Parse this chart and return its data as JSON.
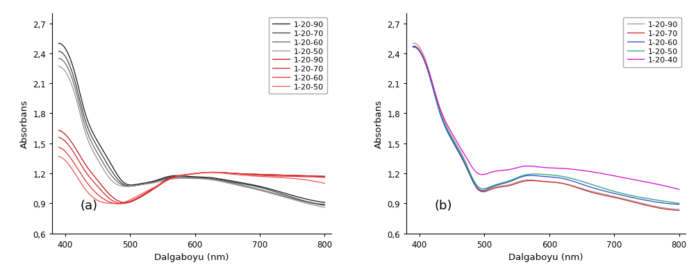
{
  "xlim": [
    380,
    810
  ],
  "ylim": [
    0.6,
    2.8
  ],
  "xlabel": "Dalgaboyu (nm)",
  "ylabel": "Absorbans",
  "yticks": [
    0.6,
    0.9,
    1.2,
    1.5,
    1.8,
    2.1,
    2.4,
    2.7
  ],
  "xticks": [
    400,
    500,
    600,
    700,
    800
  ],
  "panel_a": {
    "label": "(a)",
    "series": [
      {
        "label": "1-20-90",
        "color": "#111111",
        "lw": 0.9,
        "knots_x": [
          390,
          400,
          415,
          430,
          450,
          470,
          490,
          510,
          540,
          560,
          590,
          620,
          660,
          700,
          750,
          800
        ],
        "knots_y": [
          2.5,
          2.45,
          2.2,
          1.82,
          1.52,
          1.3,
          1.11,
          1.09,
          1.13,
          1.17,
          1.17,
          1.16,
          1.12,
          1.07,
          0.98,
          0.91
        ]
      },
      {
        "label": "1-20-70",
        "color": "#3a3a3a",
        "lw": 0.9,
        "knots_x": [
          390,
          400,
          415,
          430,
          450,
          470,
          490,
          510,
          540,
          560,
          590,
          620,
          660,
          700,
          750,
          800
        ],
        "knots_y": [
          2.42,
          2.37,
          2.12,
          1.75,
          1.46,
          1.24,
          1.09,
          1.08,
          1.12,
          1.16,
          1.16,
          1.15,
          1.11,
          1.06,
          0.96,
          0.89
        ]
      },
      {
        "label": "1-20-60",
        "color": "#636363",
        "lw": 0.9,
        "knots_x": [
          390,
          400,
          415,
          430,
          450,
          470,
          490,
          510,
          540,
          560,
          590,
          620,
          660,
          700,
          750,
          800
        ],
        "knots_y": [
          2.35,
          2.3,
          2.06,
          1.69,
          1.4,
          1.19,
          1.08,
          1.08,
          1.12,
          1.15,
          1.16,
          1.15,
          1.1,
          1.04,
          0.95,
          0.88
        ]
      },
      {
        "label": "1-20-50",
        "color": "#939393",
        "lw": 0.9,
        "knots_x": [
          390,
          400,
          415,
          430,
          450,
          470,
          490,
          510,
          540,
          560,
          590,
          620,
          660,
          700,
          750,
          800
        ],
        "knots_y": [
          2.27,
          2.22,
          1.99,
          1.63,
          1.34,
          1.14,
          1.07,
          1.08,
          1.11,
          1.14,
          1.15,
          1.14,
          1.09,
          1.03,
          0.94,
          0.86
        ]
      },
      {
        "label": "1-20-90",
        "color": "#bb1111",
        "lw": 0.9,
        "knots_x": [
          390,
          400,
          415,
          430,
          450,
          470,
          490,
          510,
          540,
          560,
          590,
          620,
          660,
          700,
          750,
          800
        ],
        "knots_y": [
          1.63,
          1.59,
          1.46,
          1.3,
          1.13,
          0.98,
          0.91,
          0.95,
          1.07,
          1.15,
          1.19,
          1.21,
          1.2,
          1.19,
          1.18,
          1.17
        ]
      },
      {
        "label": "1-20-70",
        "color": "#cc2222",
        "lw": 0.9,
        "knots_x": [
          390,
          400,
          415,
          430,
          450,
          470,
          490,
          510,
          540,
          560,
          590,
          620,
          660,
          700,
          750,
          800
        ],
        "knots_y": [
          1.56,
          1.52,
          1.39,
          1.23,
          1.07,
          0.94,
          0.9,
          0.94,
          1.06,
          1.14,
          1.19,
          1.21,
          1.2,
          1.19,
          1.18,
          1.17
        ]
      },
      {
        "label": "1-20-60",
        "color": "#e03030",
        "lw": 0.9,
        "knots_x": [
          390,
          400,
          415,
          430,
          450,
          470,
          490,
          510,
          540,
          560,
          590,
          620,
          660,
          700,
          750,
          800
        ],
        "knots_y": [
          1.46,
          1.42,
          1.29,
          1.14,
          0.99,
          0.91,
          0.9,
          0.95,
          1.06,
          1.14,
          1.19,
          1.21,
          1.2,
          1.18,
          1.17,
          1.16
        ]
      },
      {
        "label": "1-20-50",
        "color": "#f05050",
        "lw": 0.9,
        "knots_x": [
          390,
          400,
          415,
          430,
          450,
          470,
          490,
          510,
          540,
          560,
          590,
          620,
          660,
          700,
          750,
          800
        ],
        "knots_y": [
          1.37,
          1.33,
          1.2,
          1.05,
          0.93,
          0.9,
          0.91,
          0.97,
          1.07,
          1.14,
          1.19,
          1.21,
          1.19,
          1.17,
          1.15,
          1.1
        ]
      }
    ]
  },
  "panel_b": {
    "label": "(b)",
    "series": [
      {
        "label": "1-20-90",
        "color": "#999999",
        "lw": 0.9,
        "linestyle": "-",
        "knots_x": [
          390,
          400,
          415,
          430,
          450,
          470,
          490,
          510,
          540,
          560,
          590,
          620,
          660,
          700,
          750,
          800
        ],
        "knots_y": [
          2.5,
          2.46,
          2.22,
          1.87,
          1.57,
          1.33,
          1.05,
          1.05,
          1.09,
          1.13,
          1.12,
          1.1,
          1.03,
          0.97,
          0.89,
          0.84
        ]
      },
      {
        "label": "1-20-70",
        "color": "#cc2222",
        "lw": 0.9,
        "linestyle": "-",
        "knots_x": [
          390,
          400,
          415,
          430,
          450,
          470,
          490,
          510,
          540,
          560,
          590,
          620,
          660,
          700,
          750,
          800
        ],
        "knots_y": [
          2.47,
          2.43,
          2.19,
          1.84,
          1.54,
          1.3,
          1.04,
          1.04,
          1.08,
          1.12,
          1.12,
          1.1,
          1.02,
          0.96,
          0.88,
          0.83
        ]
      },
      {
        "label": "1-20-60",
        "color": "#2244cc",
        "lw": 0.9,
        "linestyle": "-",
        "knots_x": [
          390,
          400,
          415,
          430,
          450,
          470,
          490,
          510,
          540,
          560,
          590,
          620,
          660,
          700,
          750,
          800
        ],
        "knots_y": [
          2.46,
          2.42,
          2.18,
          1.83,
          1.53,
          1.29,
          1.05,
          1.06,
          1.12,
          1.17,
          1.17,
          1.15,
          1.07,
          1.0,
          0.93,
          0.89
        ]
      },
      {
        "label": "1-20-50",
        "color": "#229977",
        "lw": 0.9,
        "linestyle": "-",
        "knots_x": [
          390,
          400,
          415,
          430,
          450,
          470,
          490,
          510,
          540,
          560,
          590,
          620,
          660,
          700,
          750,
          800
        ],
        "knots_y": [
          2.46,
          2.42,
          2.18,
          1.84,
          1.55,
          1.31,
          1.07,
          1.07,
          1.13,
          1.18,
          1.19,
          1.17,
          1.1,
          1.02,
          0.95,
          0.9
        ]
      },
      {
        "label": "1-20-40",
        "color": "#dd00cc",
        "lw": 0.9,
        "linestyle": "-",
        "knots_x": [
          390,
          400,
          415,
          430,
          450,
          470,
          490,
          510,
          540,
          560,
          590,
          620,
          650,
          680,
          720,
          760,
          800
        ],
        "knots_y": [
          2.47,
          2.43,
          2.2,
          1.88,
          1.6,
          1.38,
          1.2,
          1.21,
          1.24,
          1.27,
          1.26,
          1.25,
          1.23,
          1.2,
          1.15,
          1.1,
          1.04
        ]
      }
    ]
  }
}
